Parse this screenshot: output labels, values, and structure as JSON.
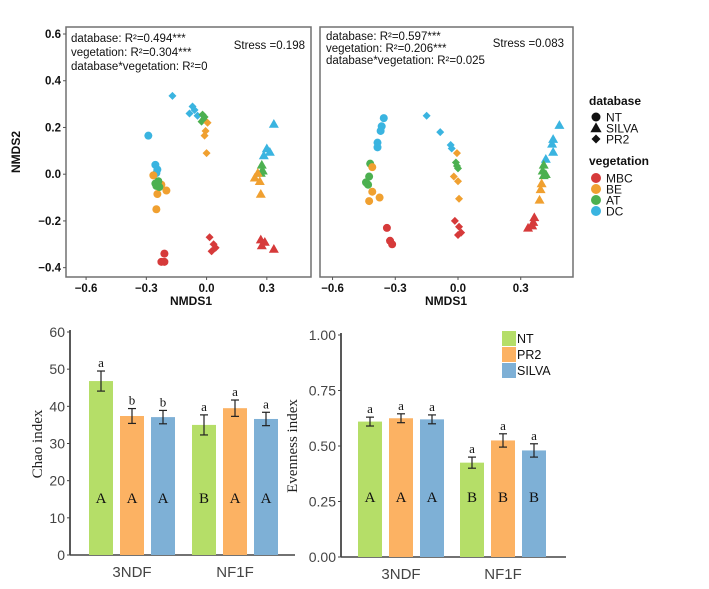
{
  "chart_data": [
    {
      "id": "nmds_left",
      "type": "scatter",
      "xlabel": "NMDS1",
      "ylabel": "NMDS2",
      "xlim": [
        -0.7,
        0.52
      ],
      "ylim": [
        -0.44,
        0.63
      ],
      "xticks": [
        -0.6,
        -0.3,
        0.0,
        0.3
      ],
      "xtick_labels": [
        "−0.6",
        "−0.3",
        "0.0",
        "0.3"
      ],
      "yticks": [
        0.6,
        0.4,
        0.2,
        0.0,
        -0.2,
        -0.4
      ],
      "ytick_labels": [
        "0.6",
        "0.4",
        "0.2",
        "0.0",
        "−0.2",
        "−0.4"
      ],
      "annotations": [
        "database: R²=0.494***",
        "vegetation: R²=0.304***",
        "database*vegetation: R²=0"
      ],
      "stress": "Stress =0.198",
      "points": [
        {
          "x": -0.29,
          "y": 0.165,
          "db": "NT",
          "veg": "DC"
        },
        {
          "x": -0.255,
          "y": 0.04,
          "db": "NT",
          "veg": "DC"
        },
        {
          "x": -0.245,
          "y": 0.02,
          "db": "NT",
          "veg": "DC"
        },
        {
          "x": -0.25,
          "y": 0.005,
          "db": "NT",
          "veg": "DC"
        },
        {
          "x": -0.265,
          "y": -0.005,
          "db": "NT",
          "veg": "BE"
        },
        {
          "x": -0.225,
          "y": -0.045,
          "db": "NT",
          "veg": "BE"
        },
        {
          "x": -0.245,
          "y": -0.085,
          "db": "NT",
          "veg": "BE"
        },
        {
          "x": -0.2,
          "y": -0.07,
          "db": "NT",
          "veg": "BE"
        },
        {
          "x": -0.25,
          "y": -0.15,
          "db": "NT",
          "veg": "BE"
        },
        {
          "x": -0.255,
          "y": -0.04,
          "db": "NT",
          "veg": "AT"
        },
        {
          "x": -0.24,
          "y": -0.03,
          "db": "NT",
          "veg": "AT"
        },
        {
          "x": -0.25,
          "y": -0.05,
          "db": "NT",
          "veg": "AT"
        },
        {
          "x": -0.235,
          "y": -0.055,
          "db": "NT",
          "veg": "AT"
        },
        {
          "x": -0.21,
          "y": -0.34,
          "db": "NT",
          "veg": "MBC"
        },
        {
          "x": -0.225,
          "y": -0.375,
          "db": "NT",
          "veg": "MBC"
        },
        {
          "x": -0.21,
          "y": -0.375,
          "db": "NT",
          "veg": "MBC"
        },
        {
          "x": -0.17,
          "y": 0.335,
          "db": "PR2",
          "veg": "DC"
        },
        {
          "x": -0.07,
          "y": 0.29,
          "db": "PR2",
          "veg": "DC"
        },
        {
          "x": -0.06,
          "y": 0.275,
          "db": "PR2",
          "veg": "DC"
        },
        {
          "x": -0.085,
          "y": 0.26,
          "db": "PR2",
          "veg": "DC"
        },
        {
          "x": -0.045,
          "y": 0.25,
          "db": "PR2",
          "veg": "DC"
        },
        {
          "x": -0.02,
          "y": 0.255,
          "db": "PR2",
          "veg": "AT"
        },
        {
          "x": -0.015,
          "y": 0.235,
          "db": "PR2",
          "veg": "AT"
        },
        {
          "x": -0.025,
          "y": 0.225,
          "db": "PR2",
          "veg": "AT"
        },
        {
          "x": -0.01,
          "y": 0.245,
          "db": "PR2",
          "veg": "AT"
        },
        {
          "x": 0.005,
          "y": 0.22,
          "db": "PR2",
          "veg": "BE"
        },
        {
          "x": -0.005,
          "y": 0.185,
          "db": "PR2",
          "veg": "BE"
        },
        {
          "x": -0.01,
          "y": 0.165,
          "db": "PR2",
          "veg": "BE"
        },
        {
          "x": 0.0,
          "y": 0.09,
          "db": "PR2",
          "veg": "BE"
        },
        {
          "x": 0.015,
          "y": -0.27,
          "db": "PR2",
          "veg": "MBC"
        },
        {
          "x": 0.035,
          "y": -0.3,
          "db": "PR2",
          "veg": "MBC"
        },
        {
          "x": 0.045,
          "y": -0.315,
          "db": "PR2",
          "veg": "MBC"
        },
        {
          "x": 0.025,
          "y": -0.33,
          "db": "PR2",
          "veg": "MBC"
        },
        {
          "x": 0.335,
          "y": 0.215,
          "db": "SILVA",
          "veg": "DC"
        },
        {
          "x": 0.3,
          "y": 0.11,
          "db": "SILVA",
          "veg": "DC"
        },
        {
          "x": 0.315,
          "y": 0.095,
          "db": "SILVA",
          "veg": "DC"
        },
        {
          "x": 0.285,
          "y": 0.08,
          "db": "SILVA",
          "veg": "DC"
        },
        {
          "x": 0.275,
          "y": 0.04,
          "db": "SILVA",
          "veg": "AT"
        },
        {
          "x": 0.28,
          "y": 0.015,
          "db": "SILVA",
          "veg": "AT"
        },
        {
          "x": 0.27,
          "y": 0.005,
          "db": "SILVA",
          "veg": "AT"
        },
        {
          "x": 0.255,
          "y": 0.005,
          "db": "SILVA",
          "veg": "BE"
        },
        {
          "x": 0.24,
          "y": -0.015,
          "db": "SILVA",
          "veg": "BE"
        },
        {
          "x": 0.265,
          "y": -0.03,
          "db": "SILVA",
          "veg": "BE"
        },
        {
          "x": 0.27,
          "y": -0.085,
          "db": "SILVA",
          "veg": "BE"
        },
        {
          "x": 0.27,
          "y": -0.28,
          "db": "SILVA",
          "veg": "MBC"
        },
        {
          "x": 0.29,
          "y": -0.29,
          "db": "SILVA",
          "veg": "MBC"
        },
        {
          "x": 0.275,
          "y": -0.305,
          "db": "SILVA",
          "veg": "MBC"
        },
        {
          "x": 0.335,
          "y": -0.32,
          "db": "SILVA",
          "veg": "MBC"
        }
      ]
    },
    {
      "id": "nmds_right",
      "type": "scatter",
      "xlabel": "NMDS1",
      "xlim": [
        -0.66,
        0.55
      ],
      "ylim": [
        -0.44,
        0.63
      ],
      "xticks": [
        -0.6,
        -0.3,
        0.0,
        0.3
      ],
      "xtick_labels": [
        "−0.6",
        "−0.3",
        "0.0",
        "0.3"
      ],
      "annotations": [
        "database: R²=0.597***",
        "vegetation: R²=0.206***",
        "database*vegetation: R²=0.025"
      ],
      "stress": "Stress =0.083",
      "points": [
        {
          "x": -0.355,
          "y": 0.24,
          "db": "NT",
          "veg": "DC"
        },
        {
          "x": -0.365,
          "y": 0.205,
          "db": "NT",
          "veg": "DC"
        },
        {
          "x": -0.37,
          "y": 0.185,
          "db": "NT",
          "veg": "DC"
        },
        {
          "x": -0.385,
          "y": 0.135,
          "db": "NT",
          "veg": "DC"
        },
        {
          "x": -0.385,
          "y": 0.115,
          "db": "NT",
          "veg": "DC"
        },
        {
          "x": -0.42,
          "y": 0.045,
          "db": "NT",
          "veg": "AT"
        },
        {
          "x": -0.425,
          "y": -0.01,
          "db": "NT",
          "veg": "AT"
        },
        {
          "x": -0.44,
          "y": -0.035,
          "db": "NT",
          "veg": "AT"
        },
        {
          "x": -0.43,
          "y": -0.045,
          "db": "NT",
          "veg": "AT"
        },
        {
          "x": -0.41,
          "y": 0.03,
          "db": "NT",
          "veg": "BE"
        },
        {
          "x": -0.41,
          "y": -0.075,
          "db": "NT",
          "veg": "BE"
        },
        {
          "x": -0.375,
          "y": -0.1,
          "db": "NT",
          "veg": "BE"
        },
        {
          "x": -0.425,
          "y": -0.115,
          "db": "NT",
          "veg": "BE"
        },
        {
          "x": -0.34,
          "y": -0.23,
          "db": "NT",
          "veg": "MBC"
        },
        {
          "x": -0.325,
          "y": -0.285,
          "db": "NT",
          "veg": "MBC"
        },
        {
          "x": -0.315,
          "y": -0.3,
          "db": "NT",
          "veg": "MBC"
        },
        {
          "x": -0.15,
          "y": 0.25,
          "db": "PR2",
          "veg": "DC"
        },
        {
          "x": -0.085,
          "y": 0.18,
          "db": "PR2",
          "veg": "DC"
        },
        {
          "x": -0.035,
          "y": 0.125,
          "db": "PR2",
          "veg": "DC"
        },
        {
          "x": -0.03,
          "y": 0.11,
          "db": "PR2",
          "veg": "DC"
        },
        {
          "x": -0.005,
          "y": 0.09,
          "db": "PR2",
          "veg": "BE"
        },
        {
          "x": -0.01,
          "y": 0.05,
          "db": "PR2",
          "veg": "AT"
        },
        {
          "x": -0.005,
          "y": 0.035,
          "db": "PR2",
          "veg": "AT"
        },
        {
          "x": 0.0,
          "y": 0.025,
          "db": "PR2",
          "veg": "AT"
        },
        {
          "x": -0.02,
          "y": -0.01,
          "db": "PR2",
          "veg": "BE"
        },
        {
          "x": 0.0,
          "y": -0.03,
          "db": "PR2",
          "veg": "BE"
        },
        {
          "x": 0.005,
          "y": -0.105,
          "db": "PR2",
          "veg": "BE"
        },
        {
          "x": -0.015,
          "y": -0.2,
          "db": "PR2",
          "veg": "MBC"
        },
        {
          "x": 0.005,
          "y": -0.225,
          "db": "PR2",
          "veg": "MBC"
        },
        {
          "x": 0.015,
          "y": -0.25,
          "db": "PR2",
          "veg": "MBC"
        },
        {
          "x": 0.0,
          "y": -0.26,
          "db": "PR2",
          "veg": "MBC"
        },
        {
          "x": 0.485,
          "y": 0.21,
          "db": "SILVA",
          "veg": "DC"
        },
        {
          "x": 0.455,
          "y": 0.15,
          "db": "SILVA",
          "veg": "DC"
        },
        {
          "x": 0.45,
          "y": 0.13,
          "db": "SILVA",
          "veg": "DC"
        },
        {
          "x": 0.455,
          "y": 0.095,
          "db": "SILVA",
          "veg": "DC"
        },
        {
          "x": 0.42,
          "y": 0.065,
          "db": "SILVA",
          "veg": "DC"
        },
        {
          "x": 0.41,
          "y": 0.04,
          "db": "SILVA",
          "veg": "AT"
        },
        {
          "x": 0.405,
          "y": 0.015,
          "db": "SILVA",
          "veg": "AT"
        },
        {
          "x": 0.41,
          "y": -0.005,
          "db": "SILVA",
          "veg": "AT"
        },
        {
          "x": 0.42,
          "y": 0.0,
          "db": "SILVA",
          "veg": "AT"
        },
        {
          "x": 0.4,
          "y": -0.04,
          "db": "SILVA",
          "veg": "BE"
        },
        {
          "x": 0.395,
          "y": -0.065,
          "db": "SILVA",
          "veg": "BE"
        },
        {
          "x": 0.39,
          "y": -0.11,
          "db": "SILVA",
          "veg": "BE"
        },
        {
          "x": 0.365,
          "y": -0.185,
          "db": "SILVA",
          "veg": "MBC"
        },
        {
          "x": 0.36,
          "y": -0.205,
          "db": "SILVA",
          "veg": "MBC"
        },
        {
          "x": 0.355,
          "y": -0.22,
          "db": "SILVA",
          "veg": "MBC"
        },
        {
          "x": 0.335,
          "y": -0.23,
          "db": "SILVA",
          "veg": "MBC"
        }
      ]
    },
    {
      "id": "chao_bar",
      "type": "bar",
      "ylabel": "Chao index",
      "ylim": [
        0,
        60
      ],
      "yticks": [
        0,
        10,
        20,
        30,
        40,
        50,
        60
      ],
      "categories": [
        "3NDF",
        "NF1F"
      ],
      "series": [
        {
          "name": "NT",
          "values": [
            46.8,
            35.0
          ],
          "errors": [
            2.7,
            2.7
          ],
          "letters_top": [
            "a",
            "a"
          ],
          "letters_inside": [
            "A",
            "B"
          ]
        },
        {
          "name": "PR2",
          "values": [
            37.4,
            39.5
          ],
          "errors": [
            2.0,
            2.2
          ],
          "letters_top": [
            "b",
            "a"
          ],
          "letters_inside": [
            "A",
            "A"
          ]
        },
        {
          "name": "SILVA",
          "values": [
            37.1,
            36.6
          ],
          "errors": [
            1.8,
            1.8
          ],
          "letters_top": [
            "b",
            "a"
          ],
          "letters_inside": [
            "A",
            "A"
          ]
        }
      ]
    },
    {
      "id": "evenness_bar",
      "type": "bar",
      "ylabel": "Evenness index",
      "ylim": [
        0,
        1
      ],
      "yticks": [
        0,
        0.25,
        0.5,
        0.75,
        1.0
      ],
      "ytick_labels": [
        "0.00",
        "0.25",
        "0.50",
        "0.75",
        "1.00"
      ],
      "categories": [
        "3NDF",
        "NF1F"
      ],
      "series": [
        {
          "name": "NT",
          "values": [
            0.61,
            0.425
          ],
          "errors": [
            0.02,
            0.025
          ],
          "letters_top": [
            "a",
            "a"
          ],
          "letters_inside": [
            "A",
            "B"
          ]
        },
        {
          "name": "PR2",
          "values": [
            0.625,
            0.525
          ],
          "errors": [
            0.02,
            0.03
          ],
          "letters_top": [
            "a",
            "a"
          ],
          "letters_inside": [
            "A",
            "B"
          ]
        },
        {
          "name": "SILVA",
          "values": [
            0.62,
            0.48
          ],
          "errors": [
            0.02,
            0.03
          ],
          "letters_top": [
            "a",
            "a"
          ],
          "letters_inside": [
            "A",
            "B"
          ]
        }
      ],
      "legend": {
        "position": "top-right",
        "entries": [
          "NT",
          "PR2",
          "SILVA"
        ]
      }
    }
  ],
  "nmds_legend": {
    "database_title": "database",
    "database_items": [
      {
        "label": "NT",
        "shape": "circle"
      },
      {
        "label": "SILVA",
        "shape": "triangle"
      },
      {
        "label": "PR2",
        "shape": "diamond"
      }
    ],
    "vegetation_title": "vegetation",
    "vegetation_items": [
      {
        "label": "MBC",
        "color": "#d63a3a"
      },
      {
        "label": "BE",
        "color": "#f0a030"
      },
      {
        "label": "AT",
        "color": "#4cb050"
      },
      {
        "label": "DC",
        "color": "#3ab4e0"
      }
    ]
  },
  "colors": {
    "veg": {
      "MBC": "#d63a3a",
      "BE": "#f0a030",
      "AT": "#4cb050",
      "DC": "#3ab4e0"
    },
    "bars": {
      "NT": "#b5de68",
      "PR2": "#fcb263",
      "SILVA": "#7eb0d6"
    }
  }
}
